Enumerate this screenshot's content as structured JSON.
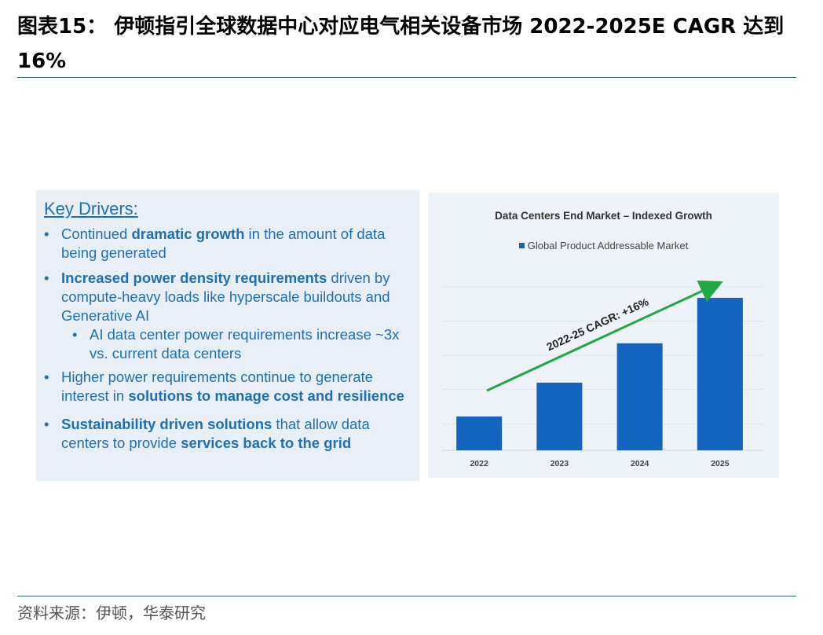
{
  "figure": {
    "title": "图表15：  伊顿指引全球数据中心对应电气相关设备市场  2022-2025E CAGR 达到 16%",
    "source": "资料来源：伊顿，华泰研究"
  },
  "drivers": {
    "heading": "Key Drivers:",
    "b1": {
      "pre": "Continued ",
      "bold": "dramatic growth",
      "post": " in the amount of data being generated"
    },
    "b2": {
      "bold": "Increased power density requirements",
      "post": " driven by compute-heavy loads like hyperscale buildouts and Generative AI"
    },
    "b2_sub": "AI data center power requirements increase ~3x vs. current data centers",
    "b3": {
      "pre": "Higher power requirements continue to generate interest in ",
      "bold": "solutions to manage cost and resilience"
    },
    "b4": {
      "bold": "Sustainability driven solutions",
      "mid": " that allow data centers to provide ",
      "bold2": "services back to the grid"
    }
  },
  "colors": {
    "bar": "#1565c0",
    "arrow": "#22a745",
    "panel": "#e9eff6",
    "accent": "#1f6fb5"
  },
  "chart_data": {
    "type": "bar",
    "title": "Data Centers End Market – Indexed Growth",
    "legend_position": "top",
    "categories": [
      "2022",
      "2023",
      "2024",
      "2025"
    ],
    "series": [
      {
        "name": "Global Product Addressable Market",
        "values": [
          100,
          116,
          134.6,
          156.1
        ]
      }
    ],
    "ylim": [
      84,
      165
    ],
    "annotation": "2022-25 CAGR: +16%",
    "grid": true
  }
}
